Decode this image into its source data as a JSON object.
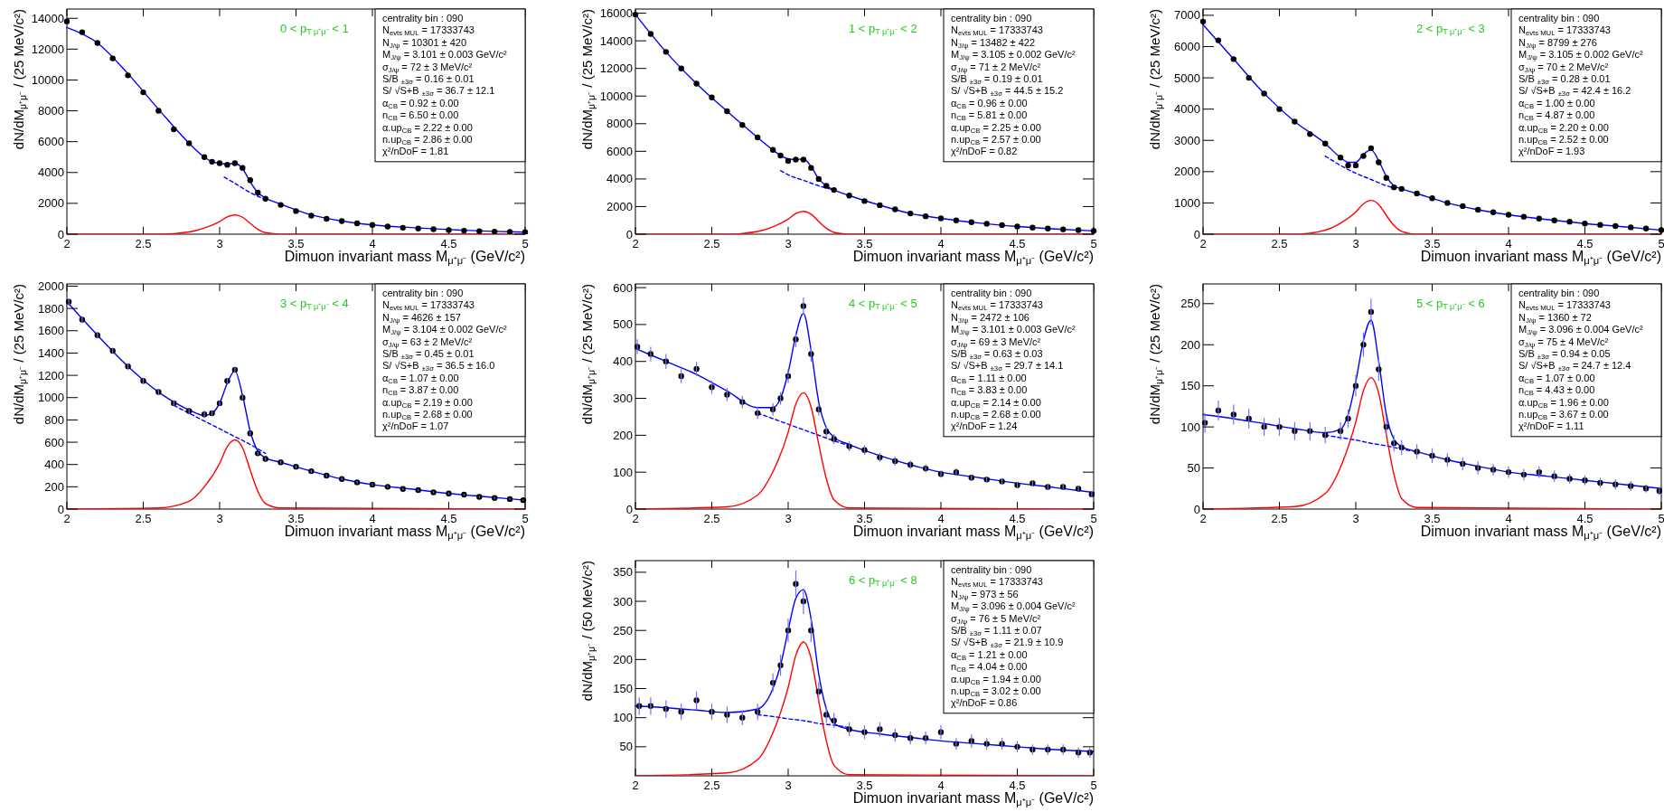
{
  "chart_data": [
    {
      "type": "scatter",
      "xlabel": "Dimuon invariant mass M$_{μ⁺μ⁻}$ (GeV/c²)",
      "ylabel": "dN/dM$_{μ⁺μ⁻}$ / (25 MeV/c²)",
      "xlim": [
        2,
        5
      ],
      "xticks": [
        2,
        2.5,
        3,
        3.5,
        4,
        4.5,
        5
      ],
      "ylim": [
        0,
        14600
      ],
      "yticks": [
        0,
        2000,
        4000,
        6000,
        8000,
        10000,
        12000,
        14000
      ],
      "annotations": [
        "0 < p$_{T μ⁺μ⁻}$ < 1",
        "centrality bin : 090",
        "N$_{evts MUL}$ = 17333743",
        "N$_{J/ψ}$ = 10301 ± 420",
        "M$_{J/ψ}$ = 3.101 ± 0.003 GeV/c²",
        "σ$_{J/ψ}$ = 72 ± 3 MeV/c²",
        "S/B $_{±3σ}$ = 0.16 ± 0.01",
        "S/ √S+B $_{±3σ}$ = 36.7 ± 12.1",
        "α$_{CB}$ = 0.92 ± 0.00",
        "n$_{CB}$ = 6.50 ± 0.00",
        "α.up$_{CB}$ = 2.22 ± 0.00",
        "n.up$_{CB}$ = 2.86 ± 0.00",
        "χ²/nDoF = 1.81"
      ],
      "series": [
        {
          "type": "scatter",
          "color": "#000000",
          "marker": "circle",
          "x": [
            2,
            2.1,
            2.2,
            2.3,
            2.4,
            2.5,
            2.6,
            2.7,
            2.8,
            2.9,
            2.95,
            3,
            3.05,
            3.1,
            3.15,
            3.2,
            3.25,
            3.3,
            3.4,
            3.5,
            3.6,
            3.7,
            3.8,
            3.9,
            4,
            4.1,
            4.2,
            4.3,
            4.4,
            4.5,
            4.6,
            4.7,
            4.8,
            4.9,
            5
          ],
          "values": [
            13800,
            13100,
            12400,
            11400,
            10300,
            9200,
            8000,
            6800,
            5900,
            5000,
            4700,
            4600,
            4500,
            4600,
            4300,
            3500,
            2700,
            2300,
            1900,
            1500,
            1200,
            1000,
            850,
            700,
            600,
            500,
            420,
            370,
            320,
            270,
            230,
            200,
            170,
            150,
            130
          ]
        },
        {
          "type": "line",
          "color": "#0000ff",
          "x": [
            2,
            2.2,
            2.4,
            2.6,
            2.8,
            2.9,
            2.95,
            3,
            3.05,
            3.1,
            3.15,
            3.2,
            3.25,
            3.3,
            3.4,
            3.6,
            3.8,
            4,
            4.25,
            4.5,
            4.75,
            5
          ],
          "values": [
            13400,
            12400,
            10400,
            8100,
            5900,
            5000,
            4700,
            4600,
            4550,
            4600,
            4250,
            3400,
            2700,
            2350,
            1950,
            1250,
            850,
            600,
            430,
            300,
            200,
            130
          ]
        },
        {
          "type": "line",
          "color": "#0000ff",
          "line_style": "dashed",
          "x": [
            3.03,
            3.1,
            3.2,
            3.3
          ],
          "values": [
            3700,
            3300,
            2700,
            2250
          ]
        },
        {
          "type": "line",
          "color": "#ff0000",
          "x": [
            2,
            2.6,
            2.8,
            2.9,
            3,
            3.05,
            3.1,
            3.15,
            3.2,
            3.25,
            3.3,
            3.4,
            5
          ],
          "values": [
            0,
            0,
            150,
            400,
            820,
            1120,
            1250,
            1100,
            700,
            320,
            100,
            0,
            0
          ]
        }
      ]
    },
    {
      "type": "scatter",
      "xlabel": "Dimuon invariant mass M$_{μ⁺μ⁻}$ (GeV/c²)",
      "ylabel": "dN/dM$_{μ⁺μ⁻}$ / (25 MeV/c²)",
      "xlim": [
        2,
        5
      ],
      "xticks": [
        2,
        2.5,
        3,
        3.5,
        4,
        4.5,
        5
      ],
      "ylim": [
        0,
        16300
      ],
      "yticks": [
        0,
        2000,
        4000,
        6000,
        8000,
        10000,
        12000,
        14000,
        16000
      ],
      "annotations": [
        "1 < p$_{T μ⁺μ⁻}$ < 2",
        "centrality bin : 090",
        "N$_{evts MUL}$ = 17333743",
        "N$_{J/ψ}$ = 13482 ± 422",
        "M$_{J/ψ}$ = 3.105 ± 0.002 GeV/c²",
        "σ$_{J/ψ}$ = 71 ± 2 MeV/c²",
        "S/B $_{±3σ}$ = 0.19 ± 0.01",
        "S/ √S+B $_{±3σ}$ = 44.5 ± 15.2",
        "α$_{CB}$ = 0.96 ± 0.00",
        "n$_{CB}$ = 5.81 ± 0.00",
        "α.up$_{CB}$ = 2.25 ± 0.00",
        "n.up$_{CB}$ = 2.57 ± 0.00",
        "χ²/nDoF = 0.82"
      ],
      "series": [
        {
          "type": "scatter",
          "color": "#000000",
          "marker": "circle",
          "x": [
            2,
            2.1,
            2.2,
            2.3,
            2.4,
            2.5,
            2.6,
            2.7,
            2.8,
            2.9,
            2.95,
            3,
            3.05,
            3.1,
            3.15,
            3.2,
            3.25,
            3.3,
            3.4,
            3.5,
            3.6,
            3.7,
            3.8,
            3.9,
            4,
            4.1,
            4.2,
            4.3,
            4.4,
            4.5,
            4.6,
            4.7,
            4.8,
            4.9,
            5
          ],
          "values": [
            15900,
            14500,
            13200,
            12000,
            10900,
            9900,
            8900,
            7900,
            7000,
            6100,
            5700,
            5300,
            5400,
            5400,
            4800,
            4000,
            3500,
            3200,
            2800,
            2400,
            2100,
            1800,
            1500,
            1300,
            1150,
            1000,
            870,
            760,
            660,
            560,
            480,
            410,
            350,
            290,
            240
          ]
        },
        {
          "type": "line",
          "color": "#0000ff",
          "x": [
            2,
            2.2,
            2.4,
            2.6,
            2.8,
            2.9,
            2.95,
            3,
            3.05,
            3.1,
            3.15,
            3.2,
            3.25,
            3.3,
            3.4,
            3.6,
            3.8,
            4,
            4.25,
            4.5,
            4.75,
            5
          ],
          "values": [
            15900,
            13200,
            10900,
            8900,
            7000,
            6100,
            5700,
            5450,
            5400,
            5450,
            4900,
            4000,
            3500,
            3200,
            2800,
            2100,
            1500,
            1150,
            810,
            560,
            380,
            240
          ]
        },
        {
          "type": "line",
          "color": "#0000ff",
          "line_style": "dashed",
          "x": [
            2.95,
            3,
            3.1,
            3.2,
            3.3
          ],
          "values": [
            4600,
            4300,
            3900,
            3500,
            3200
          ]
        },
        {
          "type": "line",
          "color": "#ff0000",
          "x": [
            2,
            2.6,
            2.8,
            2.9,
            3,
            3.05,
            3.1,
            3.15,
            3.2,
            3.25,
            3.3,
            3.4,
            5
          ],
          "values": [
            0,
            0,
            200,
            530,
            1090,
            1490,
            1650,
            1450,
            920,
            430,
            130,
            0,
            0
          ]
        }
      ]
    },
    {
      "type": "scatter",
      "xlabel": "Dimuon invariant mass M$_{μ⁺μ⁻}$ (GeV/c²)",
      "ylabel": "dN/dM$_{μ⁺μ⁻}$ / (25 MeV/c²)",
      "xlim": [
        2,
        5
      ],
      "xticks": [
        2,
        2.5,
        3,
        3.5,
        4,
        4.5,
        5
      ],
      "ylim": [
        0,
        7200
      ],
      "yticks": [
        0,
        1000,
        2000,
        3000,
        4000,
        5000,
        6000,
        7000
      ],
      "annotations": [
        "2 < p$_{T μ⁺μ⁻}$ < 3",
        "centrality bin : 090",
        "N$_{evts MUL}$ = 17333743",
        "N$_{J/ψ}$ = 8799 ± 276",
        "M$_{J/ψ}$ = 3.105 ± 0.002 GeV/c²",
        "σ$_{J/ψ}$ = 70 ± 2 MeV/c²",
        "S/B $_{±3σ}$ = 0.28 ± 0.01",
        "S/ √S+B $_{±3σ}$ = 42.4 ± 16.2",
        "α$_{CB}$ = 1.00 ± 0.00",
        "n$_{CB}$ = 4.87 ± 0.00",
        "α.up$_{CB}$ = 2.20 ± 0.00",
        "n.up$_{CB}$ = 2.52 ± 0.00",
        "χ²/nDoF = 1.93"
      ],
      "series": [
        {
          "type": "scatter",
          "color": "#000000",
          "marker": "circle",
          "x": [
            2,
            2.1,
            2.2,
            2.3,
            2.4,
            2.5,
            2.6,
            2.7,
            2.8,
            2.9,
            2.95,
            3,
            3.05,
            3.1,
            3.15,
            3.2,
            3.25,
            3.3,
            3.4,
            3.5,
            3.6,
            3.7,
            3.8,
            3.9,
            4,
            4.1,
            4.2,
            4.3,
            4.4,
            4.5,
            4.6,
            4.7,
            4.8,
            4.9,
            5
          ],
          "values": [
            6800,
            6200,
            5600,
            5000,
            4500,
            4000,
            3600,
            3200,
            2900,
            2450,
            2200,
            2200,
            2500,
            2750,
            2300,
            1800,
            1500,
            1450,
            1300,
            1150,
            1000,
            900,
            780,
            700,
            620,
            560,
            500,
            440,
            400,
            340,
            300,
            260,
            220,
            180,
            130
          ]
        },
        {
          "type": "line",
          "color": "#0000ff",
          "x": [
            2,
            2.2,
            2.4,
            2.6,
            2.8,
            2.9,
            2.95,
            3,
            3.05,
            3.1,
            3.15,
            3.2,
            3.25,
            3.3,
            3.4,
            3.6,
            3.8,
            4,
            4.25,
            4.5,
            4.75,
            5
          ],
          "values": [
            6700,
            5600,
            4500,
            3600,
            2900,
            2450,
            2300,
            2300,
            2550,
            2700,
            2350,
            1850,
            1550,
            1450,
            1300,
            1000,
            780,
            620,
            470,
            340,
            240,
            130
          ]
        },
        {
          "type": "line",
          "color": "#0000ff",
          "line_style": "dashed",
          "x": [
            2.8,
            2.9,
            3,
            3.1,
            3.2,
            3.25
          ],
          "values": [
            2500,
            2200,
            1950,
            1750,
            1550,
            1480
          ]
        },
        {
          "type": "line",
          "color": "#ff0000",
          "x": [
            2,
            2.6,
            2.8,
            2.9,
            3,
            3.05,
            3.1,
            3.15,
            3.2,
            3.25,
            3.3,
            3.4,
            5
          ],
          "values": [
            0,
            0,
            130,
            350,
            710,
            970,
            1080,
            950,
            600,
            280,
            90,
            0,
            0
          ]
        }
      ]
    },
    {
      "type": "scatter",
      "xlabel": "Dimuon invariant mass M$_{μ⁺μ⁻}$ (GeV/c²)",
      "ylabel": "dN/dM$_{μ⁺μ⁻}$ / (25 MeV/c²)",
      "xlim": [
        2,
        5
      ],
      "xticks": [
        2,
        2.5,
        3,
        3.5,
        4,
        4.5,
        5
      ],
      "ylim": [
        0,
        2020
      ],
      "yticks": [
        0,
        200,
        400,
        600,
        800,
        1000,
        1200,
        1400,
        1600,
        1800,
        2000
      ],
      "annotations": [
        "3 < p$_{T μ⁺μ⁻}$ < 4",
        "centrality bin : 090",
        "N$_{evts MUL}$ = 17333743",
        "N$_{J/ψ}$ = 4626 ± 157",
        "M$_{J/ψ}$ = 3.104 ± 0.002 GeV/c²",
        "σ$_{J/ψ}$ = 63 ± 2 MeV/c²",
        "S/B $_{±3σ}$ = 0.45 ± 0.01",
        "S/ √S+B $_{±3σ}$ = 36.5 ± 16.0",
        "α$_{CB}$ = 1.07 ± 0.00",
        "n$_{CB}$ = 3.87 ± 0.00",
        "α.up$_{CB}$ = 2.19 ± 0.00",
        "n.up$_{CB}$ = 2.68 ± 0.00",
        "χ²/nDoF = 1.07"
      ],
      "series": [
        {
          "type": "scatter",
          "color": "#000000",
          "marker": "circle",
          "x": [
            2.0125,
            2.1,
            2.2,
            2.3,
            2.4,
            2.5,
            2.6,
            2.7,
            2.8,
            2.9,
            2.95,
            3,
            3.05,
            3.1,
            3.15,
            3.2,
            3.25,
            3.3,
            3.4,
            3.5,
            3.6,
            3.7,
            3.8,
            3.9,
            4,
            4.1,
            4.2,
            4.3,
            4.4,
            4.5,
            4.6,
            4.7,
            4.8,
            4.9,
            4.9875
          ],
          "values": [
            1860,
            1700,
            1560,
            1420,
            1280,
            1150,
            1050,
            950,
            880,
            850,
            860,
            950,
            1150,
            1250,
            1000,
            680,
            500,
            450,
            420,
            380,
            340,
            300,
            270,
            240,
            220,
            200,
            180,
            170,
            150,
            140,
            130,
            110,
            100,
            90,
            80
          ],
          "errors": [
            30,
            30,
            28,
            27,
            26,
            25,
            24,
            23,
            22,
            34,
            22,
            23,
            25,
            26,
            23,
            19,
            16,
            15,
            15,
            14,
            13,
            12,
            12,
            11,
            11,
            10,
            10,
            10,
            9,
            9,
            8,
            8,
            8,
            7,
            7
          ]
        },
        {
          "type": "line",
          "color": "#0000ff",
          "x": [
            2,
            2.2,
            2.4,
            2.6,
            2.8,
            2.9,
            2.95,
            3,
            3.05,
            3.1,
            3.15,
            3.2,
            3.25,
            3.3,
            3.4,
            3.6,
            3.8,
            4,
            4.25,
            4.5,
            4.75,
            5
          ],
          "values": [
            1860,
            1560,
            1280,
            1050,
            890,
            840,
            860,
            950,
            1130,
            1240,
            1020,
            700,
            520,
            460,
            420,
            340,
            270,
            220,
            180,
            140,
            110,
            80
          ]
        },
        {
          "type": "line",
          "color": "#0000ff",
          "line_style": "dashed",
          "x": [
            2.7,
            2.8,
            2.9,
            3,
            3.1,
            3.2,
            3.3
          ],
          "values": [
            930,
            860,
            790,
            720,
            650,
            580,
            500
          ]
        },
        {
          "type": "line",
          "color": "#ff0000",
          "x": [
            2,
            2.6,
            2.8,
            2.9,
            3,
            3.05,
            3.1,
            3.15,
            3.2,
            3.25,
            3.3,
            3.4,
            5
          ],
          "values": [
            0,
            10,
            70,
            200,
            410,
            560,
            620,
            550,
            350,
            160,
            50,
            10,
            0
          ]
        }
      ]
    },
    {
      "type": "scatter",
      "xlabel": "Dimuon invariant mass M$_{μ⁺μ⁻}$ (GeV/c²)",
      "ylabel": "dN/dM$_{μ⁺μ⁻}$ / (25 MeV/c²)",
      "xlim": [
        2,
        5
      ],
      "xticks": [
        2,
        2.5,
        3,
        3.5,
        4,
        4.5,
        5
      ],
      "ylim": [
        0,
        610
      ],
      "yticks": [
        0,
        100,
        200,
        300,
        400,
        500,
        600
      ],
      "annotations": [
        "4 < p$_{T μ⁺μ⁻}$ < 5",
        "centrality bin : 090",
        "N$_{evts MUL}$ = 17333743",
        "N$_{J/ψ}$ = 2472 ± 106",
        "M$_{J/ψ}$ = 3.101 ± 0.003 GeV/c²",
        "σ$_{J/ψ}$ = 69 ± 3 MeV/c²",
        "S/B $_{±3σ}$ = 0.63 ± 0.03",
        "S/ √S+B $_{±3σ}$ = 29.7 ± 14.1",
        "α$_{CB}$ = 1.11 ± 0.00",
        "n$_{CB}$ = 3.83 ± 0.00",
        "α.up$_{CB}$ = 2.14 ± 0.00",
        "n.up$_{CB}$ = 2.68 ± 0.00",
        "χ²/nDoF = 1.24"
      ],
      "series": [
        {
          "type": "scatter",
          "color": "#000000",
          "marker": "circle",
          "x": [
            2.0125,
            2.1,
            2.2,
            2.3,
            2.4,
            2.5,
            2.6,
            2.7,
            2.8,
            2.9,
            2.95,
            3,
            3.05,
            3.1,
            3.15,
            3.2,
            3.25,
            3.3,
            3.4,
            3.5,
            3.6,
            3.7,
            3.8,
            3.9,
            4,
            4.1,
            4.2,
            4.3,
            4.4,
            4.5,
            4.6,
            4.7,
            4.8,
            4.9,
            4.9875
          ],
          "values": [
            440,
            420,
            400,
            360,
            380,
            330,
            310,
            290,
            260,
            270,
            300,
            360,
            460,
            550,
            420,
            270,
            210,
            190,
            170,
            160,
            140,
            130,
            120,
            110,
            95,
            100,
            85,
            80,
            75,
            65,
            70,
            60,
            60,
            55,
            40
          ],
          "errors": [
            20,
            20,
            20,
            19,
            19,
            18,
            18,
            17,
            16,
            17,
            17,
            19,
            21,
            23,
            20,
            17,
            15,
            14,
            13,
            13,
            12,
            12,
            11,
            11,
            10,
            10,
            9,
            9,
            9,
            8,
            8,
            8,
            8,
            7,
            7
          ]
        },
        {
          "type": "line",
          "color": "#0000ff",
          "x": [
            2,
            2.2,
            2.4,
            2.6,
            2.8,
            2.9,
            2.95,
            3,
            3.05,
            3.1,
            3.15,
            3.2,
            3.25,
            3.3,
            3.4,
            3.6,
            3.8,
            4,
            4.25,
            4.5,
            4.75,
            5
          ],
          "values": [
            435,
            400,
            365,
            320,
            275,
            275,
            300,
            370,
            470,
            530,
            430,
            290,
            220,
            195,
            175,
            145,
            120,
            100,
            85,
            70,
            58,
            45
          ]
        },
        {
          "type": "line",
          "color": "#0000ff",
          "line_style": "dashed",
          "x": [
            2.8,
            2.9,
            3,
            3.1,
            3.2,
            3.3,
            3.4
          ],
          "values": [
            260,
            245,
            230,
            215,
            200,
            185,
            172
          ]
        },
        {
          "type": "line",
          "color": "#ff0000",
          "x": [
            2,
            2.6,
            2.8,
            2.9,
            3,
            3.05,
            3.1,
            3.15,
            3.2,
            3.25,
            3.3,
            3.4,
            5
          ],
          "values": [
            0,
            6,
            38,
            101,
            208,
            284,
            315,
            277,
            176,
            82,
            25,
            3,
            0
          ]
        }
      ]
    },
    {
      "type": "scatter",
      "xlabel": "Dimuon invariant mass M$_{μ⁺μ⁻}$ (GeV/c²)",
      "ylabel": "dN/dM$_{μ⁺μ⁻}$ / (25 MeV/c²)",
      "xlim": [
        2,
        5
      ],
      "xticks": [
        2,
        2.5,
        3,
        3.5,
        4,
        4.5,
        5
      ],
      "ylim": [
        0,
        274
      ],
      "yticks": [
        0,
        50,
        100,
        150,
        200,
        250
      ],
      "annotations": [
        "5 < p$_{T μ⁺μ⁻}$ < 6",
        "centrality bin : 090",
        "N$_{evts MUL}$ = 17333743",
        "N$_{J/ψ}$ = 1360 ± 72",
        "M$_{J/ψ}$ = 3.096 ± 0.004 GeV/c²",
        "σ$_{J/ψ}$ = 75 ± 4 MeV/c²",
        "S/B $_{±3σ}$ = 0.94 ± 0.05",
        "S/ √S+B $_{±3σ}$ = 24.7 ± 12.4",
        "α$_{CB}$ = 1.07 ± 0.00",
        "n$_{CB}$ = 4.43 ± 0.00",
        "α.up$_{CB}$ = 1.96 ± 0.00",
        "n.up$_{CB}$ = 3.67 ± 0.00",
        "χ²/nDoF = 1.11"
      ],
      "series": [
        {
          "type": "scatter",
          "color": "#000000",
          "marker": "circle",
          "x": [
            2.0125,
            2.1,
            2.2,
            2.3,
            2.4,
            2.5,
            2.6,
            2.7,
            2.8,
            2.9,
            2.95,
            3,
            3.05,
            3.1,
            3.15,
            3.2,
            3.25,
            3.3,
            3.4,
            3.5,
            3.6,
            3.7,
            3.8,
            3.9,
            4,
            4.1,
            4.2,
            4.3,
            4.4,
            4.5,
            4.6,
            4.7,
            4.8,
            4.9,
            4.9875
          ],
          "values": [
            105,
            120,
            115,
            110,
            100,
            100,
            95,
            95,
            90,
            95,
            110,
            150,
            200,
            240,
            170,
            100,
            80,
            75,
            70,
            65,
            60,
            55,
            50,
            48,
            45,
            42,
            45,
            40,
            37,
            35,
            32,
            30,
            28,
            25,
            22
          ],
          "errors": [
            12,
            12,
            12,
            12,
            11,
            11,
            11,
            11,
            10,
            11,
            11,
            13,
            15,
            16,
            14,
            11,
            10,
            9,
            9,
            9,
            8,
            8,
            8,
            7,
            7,
            7,
            7,
            7,
            6,
            6,
            6,
            6,
            6,
            5,
            5
          ]
        },
        {
          "type": "line",
          "color": "#0000ff",
          "x": [
            2,
            2.2,
            2.4,
            2.6,
            2.8,
            2.9,
            2.95,
            3,
            3.05,
            3.1,
            3.15,
            3.2,
            3.25,
            3.3,
            3.4,
            3.6,
            3.8,
            4,
            4.25,
            4.5,
            4.75,
            5
          ],
          "values": [
            115,
            110,
            104,
            98,
            93,
            97,
            115,
            155,
            205,
            230,
            180,
            115,
            85,
            76,
            70,
            60,
            52,
            45,
            40,
            35,
            30,
            25
          ]
        },
        {
          "type": "line",
          "color": "#0000ff",
          "line_style": "dashed",
          "x": [
            2.8,
            2.9,
            3,
            3.1,
            3.2,
            3.3,
            3.4
          ],
          "values": [
            90,
            87,
            84,
            80,
            77,
            73,
            70
          ]
        },
        {
          "type": "line",
          "color": "#ff0000",
          "x": [
            2,
            2.6,
            2.8,
            2.9,
            3,
            3.05,
            3.1,
            3.15,
            3.2,
            3.25,
            3.3,
            3.4,
            5
          ],
          "values": [
            0,
            3,
            19,
            51,
            106,
            144,
            160,
            141,
            90,
            42,
            13,
            2,
            0
          ]
        }
      ]
    },
    {
      "type": "scatter",
      "xlabel": "Dimuon invariant mass M$_{μ⁺μ⁻}$ (GeV/c²)",
      "ylabel": "dN/dM$_{μ⁺μ⁻}$ / (50 MeV/c²)",
      "xlim": [
        2,
        5
      ],
      "xticks": [
        2,
        2.5,
        3,
        3.5,
        4,
        4.5,
        5
      ],
      "ylim": [
        0,
        370
      ],
      "yticks": [
        50,
        100,
        150,
        200,
        250,
        300,
        350
      ],
      "annotations": [
        "6 < p$_{T μ⁺μ⁻}$ < 8",
        "centrality bin : 090",
        "N$_{evts MUL}$ = 17333743",
        "N$_{J/ψ}$ = 973 ± 56",
        "M$_{J/ψ}$ = 3.096 ± 0.004 GeV/c²",
        "σ$_{J/ψ}$ = 76 ± 5 MeV/c²",
        "S/B $_{±3σ}$ = 1.11 ± 0.07",
        "S/ √S+B $_{±3σ}$ = 21.9 ± 10.9",
        "α$_{CB}$ = 1.21 ± 0.00",
        "n$_{CB}$ = 4.04 ± 0.00",
        "α.up$_{CB}$ = 1.94 ± 0.00",
        "n.up$_{CB}$ = 3.02 ± 0.00",
        "χ²/nDoF = 0.86"
      ],
      "series": [
        {
          "type": "scatter",
          "color": "#000000",
          "marker": "circle",
          "x": [
            2.025,
            2.1,
            2.2,
            2.3,
            2.4,
            2.5,
            2.6,
            2.7,
            2.8,
            2.9,
            2.95,
            3,
            3.05,
            3.1,
            3.15,
            3.2,
            3.25,
            3.3,
            3.4,
            3.5,
            3.6,
            3.7,
            3.8,
            3.9,
            4,
            4.1,
            4.2,
            4.3,
            4.4,
            4.5,
            4.6,
            4.7,
            4.8,
            4.9,
            4.975
          ],
          "values": [
            120,
            120,
            115,
            110,
            130,
            110,
            105,
            100,
            110,
            160,
            190,
            250,
            330,
            300,
            250,
            145,
            105,
            95,
            80,
            75,
            80,
            70,
            65,
            65,
            75,
            55,
            60,
            55,
            55,
            50,
            45,
            45,
            45,
            40,
            40
          ],
          "errors": [
            15,
            15,
            15,
            14,
            15,
            14,
            14,
            13,
            14,
            16,
            18,
            20,
            23,
            22,
            20,
            16,
            14,
            13,
            12,
            12,
            12,
            11,
            11,
            11,
            12,
            10,
            11,
            10,
            10,
            10,
            9,
            9,
            9,
            9,
            9
          ]
        },
        {
          "type": "line",
          "color": "#0000ff",
          "x": [
            2,
            2.2,
            2.4,
            2.6,
            2.8,
            2.9,
            2.95,
            3,
            3.05,
            3.1,
            3.15,
            3.2,
            3.25,
            3.3,
            3.4,
            3.6,
            3.8,
            4,
            4.25,
            4.5,
            4.75,
            5
          ],
          "values": [
            120,
            117,
            113,
            109,
            115,
            150,
            190,
            250,
            305,
            320,
            270,
            175,
            115,
            90,
            80,
            72,
            66,
            60,
            55,
            50,
            45,
            42
          ]
        },
        {
          "type": "line",
          "color": "#0000ff",
          "line_style": "dashed",
          "x": [
            2.8,
            2.9,
            3,
            3.1,
            3.2,
            3.3,
            3.4
          ],
          "values": [
            105,
            102,
            98,
            95,
            90,
            87,
            83
          ]
        },
        {
          "type": "line",
          "color": "#ff0000",
          "x": [
            2,
            2.6,
            2.8,
            2.9,
            3,
            3.05,
            3.1,
            3.15,
            3.2,
            3.25,
            3.3,
            3.4,
            5
          ],
          "values": [
            0,
            5,
            28,
            74,
            152,
            207,
            230,
            202,
            129,
            60,
            18,
            2,
            0
          ]
        }
      ]
    }
  ]
}
